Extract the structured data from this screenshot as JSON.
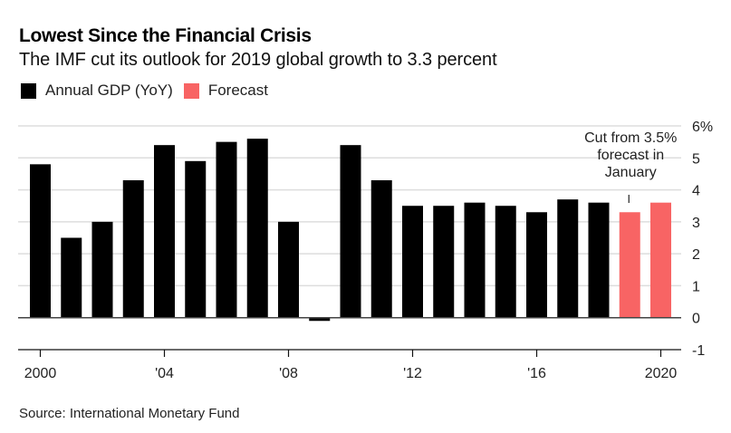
{
  "title": "Lowest Since the Financial Crisis",
  "subtitle": "The IMF cut its outlook for 2019 global growth to 3.3 percent",
  "source": "Source: International Monetary Fund",
  "colors": {
    "actual": "#000000",
    "forecast": "#f86464",
    "grid": "#dddddd",
    "axis": "#444444"
  },
  "legend": [
    {
      "label": "Annual GDP (YoY)",
      "color": "#000000"
    },
    {
      "label": "Forecast",
      "color": "#f86464"
    }
  ],
  "annotation": {
    "lines": [
      "Cut from 3.5%",
      "forecast in",
      "January"
    ],
    "year": 2019
  },
  "chart_data": {
    "type": "bar",
    "title": "Lowest Since the Financial Crisis",
    "subtitle": "The IMF cut its outlook for 2019 global growth to 3.3 percent",
    "xlabel": "",
    "ylabel": "",
    "ylim": [
      -1,
      6
    ],
    "yticks": [
      6,
      5,
      4,
      3,
      2,
      1,
      0,
      -1
    ],
    "ytick_labels": [
      "6%",
      "5",
      "4",
      "3",
      "2",
      "1",
      "0",
      "-1"
    ],
    "xticks": [
      2000,
      2004,
      2008,
      2012,
      2016,
      2020
    ],
    "xtick_labels": [
      "2000",
      "'04",
      "'08",
      "'12",
      "'16",
      "2020"
    ],
    "grid": true,
    "legend_position": "top-left",
    "categories": [
      2000,
      2001,
      2002,
      2003,
      2004,
      2005,
      2006,
      2007,
      2008,
      2009,
      2010,
      2011,
      2012,
      2013,
      2014,
      2015,
      2016,
      2017,
      2018,
      2019,
      2020
    ],
    "series": [
      {
        "name": "Annual GDP (YoY)",
        "years": [
          2000,
          2001,
          2002,
          2003,
          2004,
          2005,
          2006,
          2007,
          2008,
          2009,
          2010,
          2011,
          2012,
          2013,
          2014,
          2015,
          2016,
          2017,
          2018
        ],
        "values": [
          4.8,
          2.5,
          3.0,
          4.3,
          5.4,
          4.9,
          5.5,
          5.6,
          3.0,
          -0.1,
          5.4,
          4.3,
          3.5,
          3.5,
          3.6,
          3.5,
          3.3,
          3.7,
          3.6
        ]
      },
      {
        "name": "Forecast",
        "years": [
          2019,
          2020
        ],
        "values": [
          3.3,
          3.6
        ]
      }
    ],
    "annotations": [
      {
        "text": "Cut from 3.5% forecast in January",
        "x": 2019
      }
    ]
  }
}
